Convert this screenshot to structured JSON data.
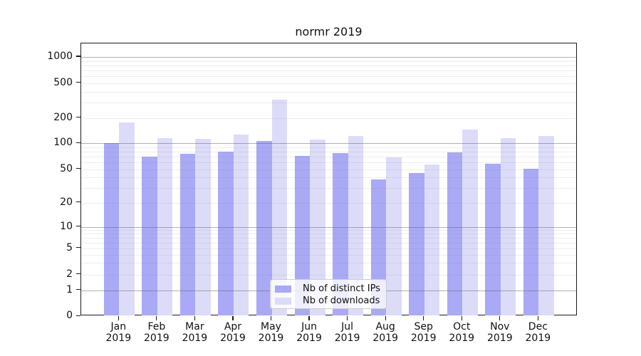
{
  "chart_data": {
    "type": "bar",
    "title": "normr 2019",
    "categories": [
      "Jan",
      "Feb",
      "Mar",
      "Apr",
      "May",
      "Jun",
      "Jul",
      "Aug",
      "Sep",
      "Oct",
      "Nov",
      "Dec"
    ],
    "category_year": "2019",
    "series": [
      {
        "name": "Nb of distinct IPs",
        "color": "#a9a9f5",
        "values": [
          100,
          70,
          75,
          80,
          106,
          72,
          77,
          38,
          45,
          79,
          58,
          51
        ]
      },
      {
        "name": "Nb of downloads",
        "color": "#dcdcf8",
        "values": [
          176,
          115,
          114,
          128,
          325,
          110,
          122,
          69,
          57,
          145,
          116,
          123
        ]
      }
    ],
    "xlabel": "",
    "ylabel": "",
    "y_axis": {
      "scale": "log-like with 0 baseline",
      "tick_labels": [
        0,
        1,
        2,
        5,
        10,
        20,
        50,
        100,
        200,
        500,
        1000
      ],
      "major_gridlines": [
        1,
        10,
        100,
        1000
      ],
      "minor_gridlines": [
        2,
        3,
        4,
        5,
        6,
        7,
        8,
        9,
        20,
        30,
        40,
        50,
        60,
        70,
        80,
        90,
        200,
        300,
        400,
        500,
        600,
        700,
        800,
        900
      ],
      "ylim": [
        0,
        1400
      ]
    },
    "legend": {
      "position": "lower center",
      "entries": [
        "Nb of distinct IPs",
        "Nb of downloads"
      ]
    },
    "grid": "horizontal, drawn over bars"
  }
}
